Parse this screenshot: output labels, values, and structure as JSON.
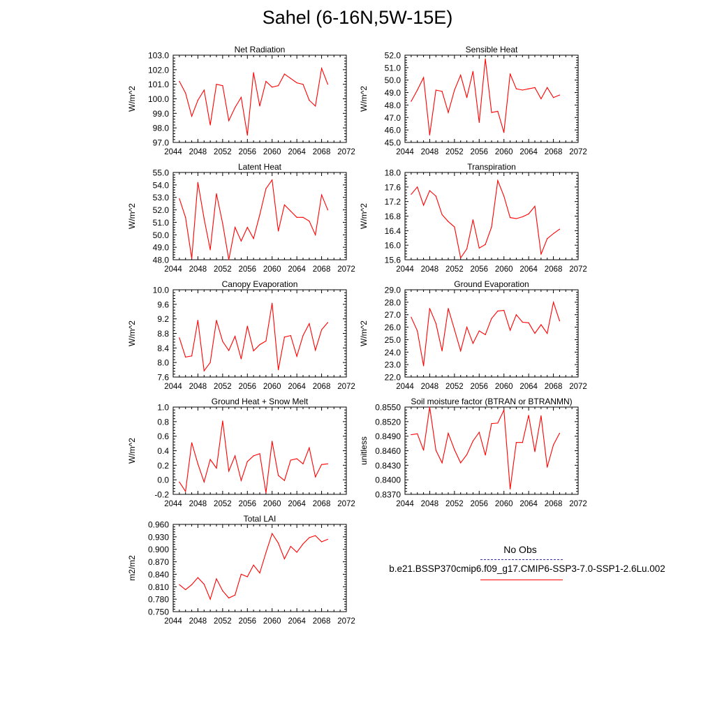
{
  "page_title": "Sahel (6-16N,5W-15E)",
  "legend": {
    "obs_label": "No Obs",
    "case_label": "b.e21.BSSP370cmip6.f09_g17.CMIP6-SSP3-7.0-SSP1-2.6Lu.002",
    "obs_color": "#3030a0",
    "case_color": "#ff0000"
  },
  "line_color": "#ff0000",
  "chart_data": [
    {
      "type": "line",
      "title": "Net Radiation",
      "ylabel": "W/m^2",
      "xlim": [
        2044,
        2072
      ],
      "ylim": [
        97.0,
        103.0
      ],
      "xticks": [
        "2044",
        "2048",
        "2052",
        "2056",
        "2060",
        "2064",
        "2068",
        "2072"
      ],
      "yticks": [
        "97.0",
        "98.0",
        "99.0",
        "100.0",
        "101.0",
        "102.0",
        "103.0"
      ],
      "x": [
        2045,
        2046,
        2047,
        2048,
        2049,
        2050,
        2051,
        2052,
        2053,
        2054,
        2055,
        2056,
        2057,
        2058,
        2059,
        2060,
        2061,
        2062,
        2063,
        2064,
        2065,
        2066,
        2067,
        2068,
        2069
      ],
      "y": [
        101.2,
        100.4,
        98.8,
        99.9,
        100.6,
        98.2,
        101.0,
        100.9,
        98.5,
        99.4,
        100.1,
        97.5,
        101.8,
        99.5,
        101.2,
        100.8,
        100.9,
        101.7,
        101.4,
        101.1,
        101.0,
        99.9,
        99.5,
        102.1,
        101.0
      ]
    },
    {
      "type": "line",
      "title": "Sensible Heat",
      "ylabel": "W/m^2",
      "xlim": [
        2044,
        2072
      ],
      "ylim": [
        45.0,
        52.0
      ],
      "xticks": [
        "2044",
        "2048",
        "2052",
        "2056",
        "2060",
        "2064",
        "2068",
        "2072"
      ],
      "yticks": [
        "45.0",
        "46.0",
        "47.0",
        "48.0",
        "49.0",
        "50.0",
        "51.0",
        "52.0"
      ],
      "x": [
        2045,
        2046,
        2047,
        2048,
        2049,
        2050,
        2051,
        2052,
        2053,
        2054,
        2055,
        2056,
        2057,
        2058,
        2059,
        2060,
        2061,
        2062,
        2063,
        2064,
        2065,
        2066,
        2067,
        2068,
        2069
      ],
      "y": [
        48.3,
        49.2,
        50.2,
        45.6,
        49.2,
        49.1,
        47.4,
        49.2,
        50.4,
        48.6,
        50.7,
        46.6,
        51.7,
        47.4,
        47.5,
        45.8,
        50.5,
        49.3,
        49.2,
        49.3,
        49.4,
        48.5,
        49.4,
        48.6,
        48.8
      ]
    },
    {
      "type": "line",
      "title": "Latent Heat",
      "ylabel": "W/m^2",
      "xlim": [
        2044,
        2072
      ],
      "ylim": [
        48.0,
        55.0
      ],
      "xticks": [
        "2044",
        "2048",
        "2052",
        "2056",
        "2060",
        "2064",
        "2068",
        "2072"
      ],
      "yticks": [
        "48.0",
        "49.0",
        "50.0",
        "51.0",
        "52.0",
        "53.0",
        "54.0",
        "55.0"
      ],
      "x": [
        2045,
        2046,
        2047,
        2048,
        2049,
        2050,
        2051,
        2052,
        2053,
        2054,
        2055,
        2056,
        2057,
        2058,
        2059,
        2060,
        2061,
        2062,
        2063,
        2064,
        2065,
        2066,
        2067,
        2068,
        2069
      ],
      "y": [
        52.9,
        51.4,
        48.1,
        54.2,
        51.3,
        48.8,
        53.3,
        50.9,
        48.0,
        50.6,
        49.5,
        50.6,
        49.7,
        51.6,
        53.7,
        54.4,
        50.3,
        52.4,
        51.9,
        51.4,
        51.4,
        51.1,
        50.0,
        53.2,
        52.0
      ]
    },
    {
      "type": "line",
      "title": "Transpiration",
      "ylabel": "W/m^2",
      "xlim": [
        2044,
        2072
      ],
      "ylim": [
        15.6,
        18.0
      ],
      "xticks": [
        "2044",
        "2048",
        "2052",
        "2056",
        "2060",
        "2064",
        "2068",
        "2072"
      ],
      "yticks": [
        "15.6",
        "16.0",
        "16.4",
        "16.8",
        "17.2",
        "17.6",
        "18.0"
      ],
      "x": [
        2045,
        2046,
        2047,
        2048,
        2049,
        2050,
        2051,
        2052,
        2053,
        2054,
        2055,
        2056,
        2057,
        2058,
        2059,
        2060,
        2061,
        2062,
        2063,
        2064,
        2065,
        2066,
        2067,
        2068,
        2069
      ],
      "y": [
        17.4,
        17.6,
        17.1,
        17.5,
        17.35,
        16.84,
        16.65,
        16.5,
        15.65,
        15.9,
        16.7,
        15.92,
        16.02,
        16.5,
        17.78,
        17.35,
        16.76,
        16.73,
        16.78,
        16.86,
        17.07,
        15.75,
        16.18,
        16.32,
        16.44
      ]
    },
    {
      "type": "line",
      "title": "Canopy Evaporation",
      "ylabel": "W/m^2",
      "xlim": [
        2044,
        2072
      ],
      "ylim": [
        7.6,
        10.0
      ],
      "xticks": [
        "2044",
        "2048",
        "2052",
        "2056",
        "2060",
        "2064",
        "2068",
        "2072"
      ],
      "yticks": [
        "7.6",
        "8.0",
        "8.4",
        "8.8",
        "9.2",
        "9.6",
        "10.0"
      ],
      "x": [
        2045,
        2046,
        2047,
        2048,
        2049,
        2050,
        2051,
        2052,
        2053,
        2054,
        2055,
        2056,
        2057,
        2058,
        2059,
        2060,
        2061,
        2062,
        2063,
        2064,
        2065,
        2066,
        2067,
        2068,
        2069
      ],
      "y": [
        8.68,
        8.15,
        8.18,
        9.16,
        7.77,
        8.0,
        9.16,
        8.58,
        8.33,
        8.72,
        8.1,
        9.0,
        8.32,
        8.49,
        8.59,
        9.63,
        7.8,
        8.7,
        8.74,
        8.17,
        8.74,
        9.07,
        8.34,
        8.9,
        9.1
      ]
    },
    {
      "type": "line",
      "title": "Ground Evaporation",
      "ylabel": "W/m^2",
      "xlim": [
        2044,
        2072
      ],
      "ylim": [
        22.0,
        29.0
      ],
      "xticks": [
        "2044",
        "2048",
        "2052",
        "2056",
        "2060",
        "2064",
        "2068",
        "2072"
      ],
      "yticks": [
        "22.0",
        "23.0",
        "24.0",
        "25.0",
        "26.0",
        "27.0",
        "28.0",
        "29.0"
      ],
      "x": [
        2045,
        2046,
        2047,
        2048,
        2049,
        2050,
        2051,
        2052,
        2053,
        2054,
        2055,
        2056,
        2057,
        2058,
        2059,
        2060,
        2061,
        2062,
        2063,
        2064,
        2065,
        2066,
        2067,
        2068,
        2069
      ],
      "y": [
        26.8,
        25.7,
        22.9,
        27.5,
        26.3,
        24.1,
        27.5,
        25.8,
        24.1,
        26.0,
        24.7,
        25.7,
        25.4,
        26.7,
        27.3,
        27.35,
        25.75,
        27.0,
        26.4,
        26.35,
        25.5,
        26.2,
        25.5,
        28.0,
        26.5
      ]
    },
    {
      "type": "line",
      "title": "Ground Heat + Snow Melt",
      "ylabel": "W/m^2",
      "xlim": [
        2044,
        2072
      ],
      "ylim": [
        -0.2,
        1.0
      ],
      "xticks": [
        "2044",
        "2048",
        "2052",
        "2056",
        "2060",
        "2064",
        "2068",
        "2072"
      ],
      "yticks": [
        "-0.2",
        "0.0",
        "0.2",
        "0.4",
        "0.6",
        "0.8",
        "1.0"
      ],
      "x": [
        2045,
        2046,
        2047,
        2048,
        2049,
        2050,
        2051,
        2052,
        2053,
        2054,
        2055,
        2056,
        2057,
        2058,
        2059,
        2060,
        2061,
        2062,
        2063,
        2064,
        2065,
        2066,
        2067,
        2068,
        2069
      ],
      "y": [
        -0.03,
        -0.16,
        0.51,
        0.22,
        -0.03,
        0.28,
        0.16,
        0.81,
        0.12,
        0.33,
        -0.01,
        0.25,
        0.33,
        0.36,
        -0.18,
        0.53,
        0.06,
        -0.01,
        0.27,
        0.29,
        0.22,
        0.44,
        0.04,
        0.21,
        0.22
      ]
    },
    {
      "type": "line",
      "title": "Soil moisture factor (BTRAN or BTRANMN)",
      "ylabel": "unitless",
      "xlim": [
        2044,
        2072
      ],
      "ylim": [
        0.837,
        0.855
      ],
      "xticks": [
        "2044",
        "2048",
        "2052",
        "2056",
        "2060",
        "2064",
        "2068",
        "2072"
      ],
      "yticks": [
        "0.8370",
        "0.8400",
        "0.8430",
        "0.8460",
        "0.8490",
        "0.8520",
        "0.8550"
      ],
      "x": [
        2045,
        2046,
        2047,
        2048,
        2049,
        2050,
        2051,
        2052,
        2053,
        2054,
        2055,
        2056,
        2057,
        2058,
        2059,
        2060,
        2061,
        2062,
        2063,
        2064,
        2065,
        2066,
        2067,
        2068,
        2069
      ],
      "y": [
        0.8493,
        0.8495,
        0.8461,
        0.855,
        0.8461,
        0.8435,
        0.8496,
        0.8462,
        0.8435,
        0.8452,
        0.848,
        0.8498,
        0.8451,
        0.8516,
        0.8517,
        0.8544,
        0.8381,
        0.8477,
        0.8477,
        0.8533,
        0.8458,
        0.8532,
        0.8426,
        0.8472,
        0.8496
      ]
    },
    {
      "type": "line",
      "title": "Total LAI",
      "ylabel": "m2/m2",
      "xlim": [
        2044,
        2072
      ],
      "ylim": [
        0.75,
        0.96
      ],
      "xticks": [
        "2044",
        "2048",
        "2052",
        "2056",
        "2060",
        "2064",
        "2068",
        "2072"
      ],
      "yticks": [
        "0.750",
        "0.780",
        "0.810",
        "0.840",
        "0.870",
        "0.900",
        "0.930",
        "0.960"
      ],
      "x": [
        2045,
        2046,
        2047,
        2048,
        2049,
        2050,
        2051,
        2052,
        2053,
        2054,
        2055,
        2056,
        2057,
        2058,
        2059,
        2060,
        2061,
        2062,
        2063,
        2064,
        2065,
        2066,
        2067,
        2068,
        2069
      ],
      "y": [
        0.815,
        0.803,
        0.815,
        0.832,
        0.816,
        0.78,
        0.829,
        0.8,
        0.783,
        0.79,
        0.84,
        0.834,
        0.862,
        0.843,
        0.892,
        0.938,
        0.915,
        0.877,
        0.907,
        0.893,
        0.913,
        0.928,
        0.933,
        0.918,
        0.924
      ]
    }
  ]
}
